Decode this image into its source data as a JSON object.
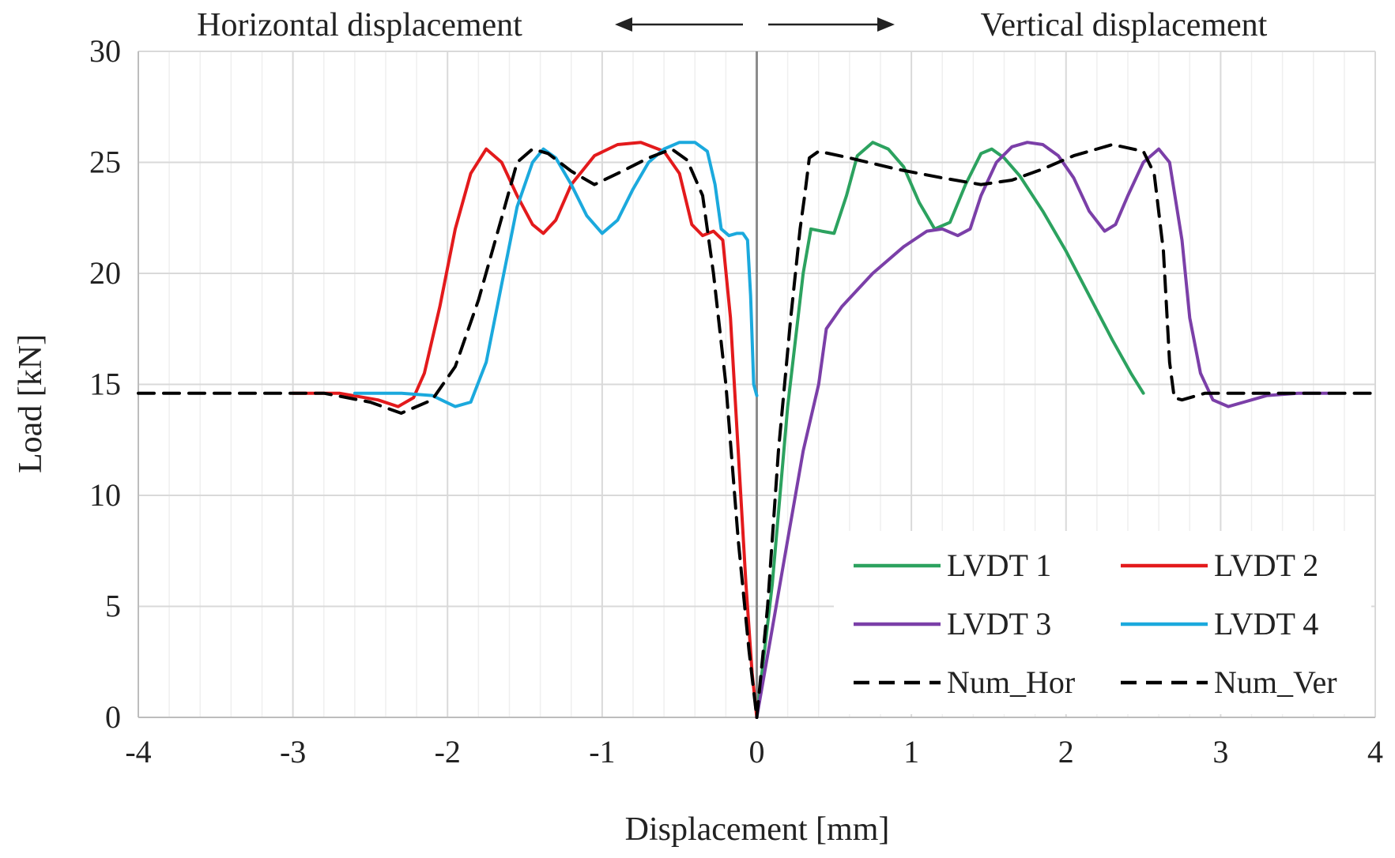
{
  "chart_data": {
    "type": "line",
    "title": "",
    "xlabel": "Displacement [mm]",
    "ylabel": "Load  [kN]",
    "xlim": [
      -4,
      4
    ],
    "ylim": [
      0,
      30
    ],
    "xticks": [
      -4,
      -3,
      -2,
      -1,
      0,
      1,
      2,
      3,
      4
    ],
    "yticks": [
      0,
      5,
      10,
      15,
      20,
      25,
      30
    ],
    "x_minor_step": 0.2,
    "grid": true,
    "legend_position": "bottom-right",
    "annotations": {
      "left": "Horizontal displacement",
      "right": "Vertical displacement"
    },
    "series": [
      {
        "name": "LVDT 1",
        "color": "#2ca25f",
        "dash": "solid",
        "points": [
          [
            0,
            0
          ],
          [
            0.1,
            6
          ],
          [
            0.2,
            14
          ],
          [
            0.3,
            20
          ],
          [
            0.35,
            22
          ],
          [
            0.42,
            21.9
          ],
          [
            0.5,
            21.8
          ],
          [
            0.58,
            23.5
          ],
          [
            0.65,
            25.3
          ],
          [
            0.75,
            25.9
          ],
          [
            0.85,
            25.6
          ],
          [
            0.95,
            24.8
          ],
          [
            1.05,
            23.2
          ],
          [
            1.15,
            22
          ],
          [
            1.25,
            22.3
          ],
          [
            1.35,
            24
          ],
          [
            1.45,
            25.4
          ],
          [
            1.52,
            25.6
          ],
          [
            1.6,
            25.2
          ],
          [
            1.7,
            24.4
          ],
          [
            1.85,
            22.8
          ],
          [
            2.0,
            21
          ],
          [
            2.15,
            19
          ],
          [
            2.3,
            17
          ],
          [
            2.42,
            15.5
          ],
          [
            2.5,
            14.6
          ]
        ]
      },
      {
        "name": "LVDT 2",
        "color": "#e31a1c",
        "dash": "solid",
        "points": [
          [
            -3,
            14.6
          ],
          [
            -2.7,
            14.6
          ],
          [
            -2.45,
            14.3
          ],
          [
            -2.32,
            14
          ],
          [
            -2.22,
            14.4
          ],
          [
            -2.15,
            15.5
          ],
          [
            -2.05,
            18.5
          ],
          [
            -1.95,
            22
          ],
          [
            -1.85,
            24.5
          ],
          [
            -1.75,
            25.6
          ],
          [
            -1.65,
            25
          ],
          [
            -1.55,
            23.5
          ],
          [
            -1.45,
            22.2
          ],
          [
            -1.38,
            21.8
          ],
          [
            -1.3,
            22.4
          ],
          [
            -1.2,
            24
          ],
          [
            -1.05,
            25.3
          ],
          [
            -0.9,
            25.8
          ],
          [
            -0.75,
            25.9
          ],
          [
            -0.6,
            25.5
          ],
          [
            -0.5,
            24.5
          ],
          [
            -0.42,
            22.2
          ],
          [
            -0.35,
            21.7
          ],
          [
            -0.28,
            21.9
          ],
          [
            -0.22,
            21.5
          ],
          [
            -0.17,
            18
          ],
          [
            -0.12,
            12
          ],
          [
            -0.07,
            6
          ],
          [
            -0.03,
            2
          ],
          [
            0,
            0
          ]
        ]
      },
      {
        "name": "LVDT 3",
        "color": "#7b3fa8",
        "dash": "solid",
        "points": [
          [
            0,
            0
          ],
          [
            0.1,
            4
          ],
          [
            0.2,
            8
          ],
          [
            0.3,
            12
          ],
          [
            0.4,
            15
          ],
          [
            0.45,
            17.5
          ],
          [
            0.55,
            18.5
          ],
          [
            0.75,
            20
          ],
          [
            0.95,
            21.2
          ],
          [
            1.1,
            21.9
          ],
          [
            1.2,
            22
          ],
          [
            1.3,
            21.7
          ],
          [
            1.38,
            22
          ],
          [
            1.45,
            23.5
          ],
          [
            1.55,
            25
          ],
          [
            1.65,
            25.7
          ],
          [
            1.75,
            25.9
          ],
          [
            1.85,
            25.8
          ],
          [
            1.95,
            25.3
          ],
          [
            2.05,
            24.3
          ],
          [
            2.15,
            22.8
          ],
          [
            2.25,
            21.9
          ],
          [
            2.32,
            22.2
          ],
          [
            2.4,
            23.5
          ],
          [
            2.5,
            25
          ],
          [
            2.6,
            25.6
          ],
          [
            2.67,
            25
          ],
          [
            2.75,
            21.5
          ],
          [
            2.8,
            18
          ],
          [
            2.87,
            15.5
          ],
          [
            2.95,
            14.3
          ],
          [
            3.05,
            14
          ],
          [
            3.15,
            14.2
          ],
          [
            3.3,
            14.5
          ],
          [
            3.5,
            14.6
          ],
          [
            3.7,
            14.6
          ]
        ]
      },
      {
        "name": "LVDT 4",
        "color": "#1ba9dd",
        "dash": "solid",
        "points": [
          [
            -2.6,
            14.6
          ],
          [
            -2.3,
            14.6
          ],
          [
            -2.1,
            14.5
          ],
          [
            -1.95,
            14
          ],
          [
            -1.85,
            14.2
          ],
          [
            -1.75,
            16
          ],
          [
            -1.65,
            19.5
          ],
          [
            -1.55,
            23
          ],
          [
            -1.45,
            25
          ],
          [
            -1.38,
            25.6
          ],
          [
            -1.3,
            25.2
          ],
          [
            -1.2,
            24
          ],
          [
            -1.1,
            22.6
          ],
          [
            -1.0,
            21.8
          ],
          [
            -0.9,
            22.4
          ],
          [
            -0.8,
            23.8
          ],
          [
            -0.7,
            25
          ],
          [
            -0.6,
            25.6
          ],
          [
            -0.5,
            25.9
          ],
          [
            -0.4,
            25.9
          ],
          [
            -0.32,
            25.5
          ],
          [
            -0.27,
            24
          ],
          [
            -0.23,
            22
          ],
          [
            -0.18,
            21.7
          ],
          [
            -0.13,
            21.8
          ],
          [
            -0.09,
            21.8
          ],
          [
            -0.06,
            21.5
          ],
          [
            -0.04,
            19
          ],
          [
            -0.02,
            15
          ],
          [
            0,
            14.5
          ]
        ]
      },
      {
        "name": "Num_Hor",
        "color": "#000000",
        "dash": "dashed",
        "points": [
          [
            -4,
            14.6
          ],
          [
            -2.8,
            14.6
          ],
          [
            -2.5,
            14.2
          ],
          [
            -2.3,
            13.7
          ],
          [
            -2.1,
            14.3
          ],
          [
            -1.95,
            15.8
          ],
          [
            -1.8,
            18.8
          ],
          [
            -1.65,
            22.5
          ],
          [
            -1.55,
            25
          ],
          [
            -1.45,
            25.6
          ],
          [
            -1.35,
            25.4
          ],
          [
            -1.2,
            24.6
          ],
          [
            -1.05,
            24
          ],
          [
            -0.9,
            24.5
          ],
          [
            -0.7,
            25.2
          ],
          [
            -0.55,
            25.6
          ],
          [
            -0.45,
            25.1
          ],
          [
            -0.35,
            23.5
          ],
          [
            -0.28,
            20
          ],
          [
            -0.2,
            15
          ],
          [
            -0.12,
            8
          ],
          [
            -0.05,
            3
          ],
          [
            0,
            0
          ]
        ]
      },
      {
        "name": "Num_Ver",
        "color": "#000000",
        "dash": "dashed",
        "points": [
          [
            0,
            0
          ],
          [
            0.07,
            5
          ],
          [
            0.14,
            12
          ],
          [
            0.22,
            18
          ],
          [
            0.28,
            22
          ],
          [
            0.31,
            23.5
          ],
          [
            0.34,
            25.2
          ],
          [
            0.4,
            25.5
          ],
          [
            0.6,
            25.2
          ],
          [
            0.9,
            24.7
          ],
          [
            1.2,
            24.3
          ],
          [
            1.45,
            24
          ],
          [
            1.65,
            24.2
          ],
          [
            1.85,
            24.7
          ],
          [
            2.05,
            25.3
          ],
          [
            2.3,
            25.8
          ],
          [
            2.5,
            25.5
          ],
          [
            2.57,
            24.5
          ],
          [
            2.63,
            21
          ],
          [
            2.67,
            16
          ],
          [
            2.7,
            14.4
          ],
          [
            2.75,
            14.3
          ],
          [
            2.9,
            14.6
          ],
          [
            3.5,
            14.6
          ],
          [
            4,
            14.6
          ]
        ]
      }
    ]
  }
}
